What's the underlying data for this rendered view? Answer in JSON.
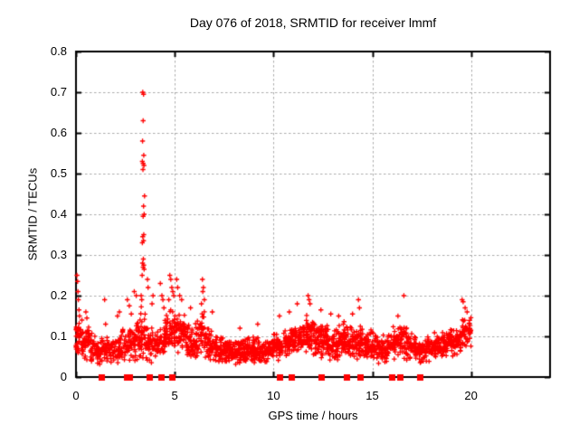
{
  "figure": {
    "background": "#ffffff",
    "text_color": "#000000"
  },
  "chart_data": {
    "type": "scatter",
    "title": "Day 076 of 2018, SRMTID for receiver lmmf",
    "xlabel": "GPS time / hours",
    "ylabel": "SRMTID / TECUs",
    "xlim": [
      0,
      24
    ],
    "ylim": [
      0,
      0.8
    ],
    "xticks": [
      0,
      5,
      10,
      15,
      20
    ],
    "xtick_labels": [
      "0",
      "5",
      "10",
      "15",
      "20"
    ],
    "yticks": [
      0,
      0.1,
      0.2,
      0.3,
      0.4,
      0.5,
      0.6,
      0.7,
      0.8
    ],
    "ytick_labels": [
      "0",
      "0.1",
      "0.2",
      "0.3",
      "0.4",
      "0.5",
      "0.6",
      "0.7",
      "0.8"
    ],
    "grid": true,
    "grid_color": "#ababab",
    "border_color": "#000000",
    "marker_color": "#ff0000",
    "legend": "none",
    "series": [
      {
        "name": "SRMTID values",
        "marker": "plus",
        "peaks": [
          [
            0.05,
            0.25
          ],
          [
            0.08,
            0.235
          ],
          [
            0.1,
            0.21
          ],
          [
            0.12,
            0.19
          ],
          [
            0.15,
            0.165
          ],
          [
            0.18,
            0.15
          ],
          [
            0.3,
            0.14
          ],
          [
            0.5,
            0.16
          ],
          [
            0.55,
            0.145
          ],
          [
            1.45,
            0.19
          ],
          [
            1.5,
            0.13
          ],
          [
            2.1,
            0.15
          ],
          [
            2.2,
            0.16
          ],
          [
            2.6,
            0.19
          ],
          [
            2.7,
            0.175
          ],
          [
            2.8,
            0.155
          ],
          [
            2.95,
            0.21
          ],
          [
            3.05,
            0.2
          ],
          [
            3.38,
            0.7
          ],
          [
            3.42,
            0.695
          ],
          [
            3.4,
            0.63
          ],
          [
            3.37,
            0.58
          ],
          [
            3.43,
            0.545
          ],
          [
            3.36,
            0.53
          ],
          [
            3.4,
            0.525
          ],
          [
            3.44,
            0.52
          ],
          [
            3.39,
            0.51
          ],
          [
            3.47,
            0.445
          ],
          [
            3.42,
            0.42
          ],
          [
            3.45,
            0.4
          ],
          [
            3.4,
            0.395
          ],
          [
            3.43,
            0.35
          ],
          [
            3.38,
            0.345
          ],
          [
            3.42,
            0.335
          ],
          [
            3.36,
            0.33
          ],
          [
            3.41,
            0.29
          ],
          [
            3.37,
            0.28
          ],
          [
            3.43,
            0.275
          ],
          [
            3.4,
            0.27
          ],
          [
            3.45,
            0.265
          ],
          [
            3.35,
            0.25
          ],
          [
            3.3,
            0.2
          ],
          [
            3.33,
            0.19
          ],
          [
            3.62,
            0.24
          ],
          [
            3.65,
            0.22
          ],
          [
            3.85,
            0.18
          ],
          [
            3.9,
            0.2
          ],
          [
            4.27,
            0.23
          ],
          [
            4.35,
            0.2
          ],
          [
            4.4,
            0.19
          ],
          [
            4.45,
            0.17
          ],
          [
            4.7,
            0.19
          ],
          [
            4.75,
            0.25
          ],
          [
            4.8,
            0.24
          ],
          [
            4.85,
            0.22
          ],
          [
            4.9,
            0.21
          ],
          [
            4.95,
            0.2
          ],
          [
            5.1,
            0.24
          ],
          [
            5.15,
            0.22
          ],
          [
            5.25,
            0.2
          ],
          [
            5.35,
            0.19
          ],
          [
            5.8,
            0.17
          ],
          [
            6.35,
            0.18
          ],
          [
            6.4,
            0.24
          ],
          [
            6.42,
            0.21
          ],
          [
            6.45,
            0.22
          ],
          [
            6.5,
            0.19
          ],
          [
            6.9,
            0.16
          ],
          [
            8.3,
            0.12
          ],
          [
            9.2,
            0.13
          ],
          [
            10.3,
            0.15
          ],
          [
            10.8,
            0.16
          ],
          [
            11.2,
            0.18
          ],
          [
            11.75,
            0.2
          ],
          [
            11.8,
            0.19
          ],
          [
            11.85,
            0.18
          ],
          [
            12.4,
            0.165
          ],
          [
            12.9,
            0.155
          ],
          [
            13.3,
            0.15
          ],
          [
            14.0,
            0.155
          ],
          [
            14.3,
            0.19
          ],
          [
            14.35,
            0.17
          ],
          [
            16.3,
            0.15
          ],
          [
            16.6,
            0.2
          ],
          [
            19.55,
            0.19
          ],
          [
            19.6,
            0.185
          ],
          [
            19.7,
            0.17
          ],
          [
            19.8,
            0.16
          ]
        ],
        "band_bins": [
          [
            0,
            0.04,
            0.14,
            30
          ],
          [
            0.25,
            0.04,
            0.12,
            26
          ],
          [
            0.5,
            0.035,
            0.13,
            26
          ],
          [
            0.75,
            0.03,
            0.11,
            24
          ],
          [
            1,
            0.025,
            0.1,
            22
          ],
          [
            1.25,
            0.03,
            0.1,
            22
          ],
          [
            1.5,
            0.03,
            0.1,
            22
          ],
          [
            1.75,
            0.03,
            0.09,
            22
          ],
          [
            2,
            0.03,
            0.11,
            24
          ],
          [
            2.25,
            0.035,
            0.12,
            24
          ],
          [
            2.5,
            0.03,
            0.12,
            24
          ],
          [
            2.75,
            0.035,
            0.13,
            24
          ],
          [
            3,
            0.04,
            0.15,
            26
          ],
          [
            3.25,
            0.04,
            0.18,
            26
          ],
          [
            3.5,
            0.035,
            0.14,
            24
          ],
          [
            3.75,
            0.03,
            0.13,
            24
          ],
          [
            4,
            0.03,
            0.13,
            24
          ],
          [
            4.25,
            0.04,
            0.15,
            24
          ],
          [
            4.5,
            0.05,
            0.16,
            28
          ],
          [
            4.75,
            0.05,
            0.18,
            28
          ],
          [
            5,
            0.05,
            0.17,
            28
          ],
          [
            5.25,
            0.05,
            0.16,
            26
          ],
          [
            5.5,
            0.04,
            0.14,
            26
          ],
          [
            5.75,
            0.04,
            0.13,
            26
          ],
          [
            6,
            0.04,
            0.14,
            26
          ],
          [
            6.25,
            0.05,
            0.17,
            26
          ],
          [
            6.5,
            0.04,
            0.14,
            26
          ],
          [
            6.75,
            0.04,
            0.12,
            26
          ],
          [
            7,
            0.035,
            0.11,
            26
          ],
          [
            7.25,
            0.03,
            0.1,
            26
          ],
          [
            7.5,
            0.03,
            0.095,
            28
          ],
          [
            7.75,
            0.03,
            0.09,
            28
          ],
          [
            8,
            0.03,
            0.095,
            28
          ],
          [
            8.25,
            0.03,
            0.1,
            30
          ],
          [
            8.5,
            0.03,
            0.1,
            30
          ],
          [
            8.75,
            0.035,
            0.105,
            30
          ],
          [
            9,
            0.03,
            0.1,
            30
          ],
          [
            9.25,
            0.03,
            0.1,
            28
          ],
          [
            9.5,
            0.03,
            0.09,
            28
          ],
          [
            9.75,
            0.035,
            0.1,
            28
          ],
          [
            10,
            0.04,
            0.12,
            28
          ],
          [
            10.25,
            0.04,
            0.12,
            28
          ],
          [
            10.5,
            0.045,
            0.13,
            28
          ],
          [
            10.75,
            0.05,
            0.13,
            28
          ],
          [
            11,
            0.05,
            0.14,
            28
          ],
          [
            11.25,
            0.05,
            0.14,
            28
          ],
          [
            11.5,
            0.055,
            0.16,
            28
          ],
          [
            11.75,
            0.05,
            0.15,
            28
          ],
          [
            12,
            0.045,
            0.14,
            28
          ],
          [
            12.25,
            0.04,
            0.13,
            28
          ],
          [
            12.5,
            0.045,
            0.13,
            28
          ],
          [
            12.75,
            0.04,
            0.12,
            28
          ],
          [
            13,
            0.04,
            0.12,
            28
          ],
          [
            13.25,
            0.04,
            0.13,
            28
          ],
          [
            13.5,
            0.045,
            0.14,
            28
          ],
          [
            13.75,
            0.04,
            0.13,
            28
          ],
          [
            14,
            0.04,
            0.13,
            28
          ],
          [
            14.25,
            0.045,
            0.13,
            28
          ],
          [
            14.5,
            0.04,
            0.12,
            26
          ],
          [
            14.75,
            0.04,
            0.12,
            26
          ],
          [
            15,
            0.035,
            0.11,
            26
          ],
          [
            15.25,
            0.03,
            0.1,
            24
          ],
          [
            15.5,
            0.035,
            0.11,
            24
          ],
          [
            15.75,
            0.04,
            0.12,
            26
          ],
          [
            16,
            0.04,
            0.13,
            26
          ],
          [
            16.25,
            0.045,
            0.13,
            26
          ],
          [
            16.5,
            0.04,
            0.13,
            26
          ],
          [
            16.75,
            0.04,
            0.12,
            26
          ],
          [
            17,
            0.035,
            0.11,
            24
          ],
          [
            17.25,
            0.03,
            0.1,
            24
          ],
          [
            17.5,
            0.03,
            0.1,
            24
          ],
          [
            17.75,
            0.035,
            0.11,
            24
          ],
          [
            18,
            0.04,
            0.11,
            26
          ],
          [
            18.25,
            0.04,
            0.12,
            26
          ],
          [
            18.5,
            0.045,
            0.12,
            26
          ],
          [
            18.75,
            0.05,
            0.12,
            26
          ],
          [
            19,
            0.05,
            0.13,
            26
          ],
          [
            19.25,
            0.055,
            0.13,
            26
          ],
          [
            19.5,
            0.06,
            0.15,
            26
          ],
          [
            19.75,
            0.07,
            0.16,
            24
          ]
        ]
      },
      {
        "name": "zero flags",
        "marker": "filled-square",
        "y": 0,
        "x": [
          1.3,
          2.55,
          2.72,
          3.7,
          4.3,
          4.87,
          10.3,
          10.9,
          12.4,
          13.7,
          14.4,
          15.97,
          16.4,
          17.4
        ]
      }
    ]
  }
}
